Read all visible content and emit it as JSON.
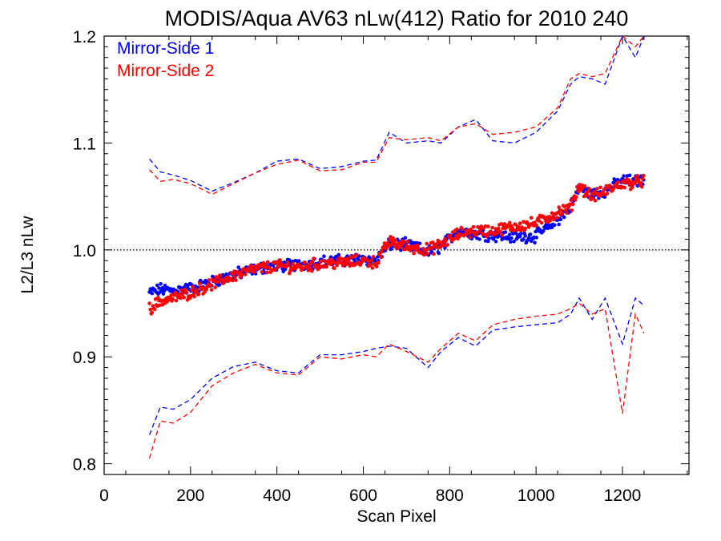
{
  "chart_data": {
    "type": "scatter",
    "title": "MODIS/Aqua AV63 nLw(412) Ratio for 2010 240",
    "xlabel": "Scan Pixel",
    "ylabel": "L2/L3 nLw",
    "xlim": [
      0,
      1354
    ],
    "ylim": [
      0.79,
      1.2
    ],
    "xticks": [
      0,
      200,
      400,
      600,
      800,
      1000,
      1200
    ],
    "xtick_labels": [
      "0",
      "200",
      "400",
      "600",
      "800",
      "1000",
      "1200"
    ],
    "yticks": [
      0.8,
      0.9,
      1.0,
      1.1,
      1.2
    ],
    "ytick_labels": [
      "0.8",
      "0.9",
      "1.0",
      "1.1",
      "1.2"
    ],
    "reference_line": 1.0,
    "legend_position": "top-left",
    "colors": {
      "ms1": "#0000ff",
      "ms2": "#ff0000"
    },
    "series": [
      {
        "name": "Mirror-Side 1",
        "color": "#0000ff",
        "x": [
          105,
          130,
          160,
          200,
          250,
          300,
          350,
          400,
          450,
          500,
          550,
          600,
          630,
          660,
          700,
          750,
          780,
          820,
          860,
          900,
          950,
          1000,
          1050,
          1080,
          1100,
          1130,
          1160,
          1200,
          1230,
          1250
        ],
        "mean": [
          0.96,
          0.963,
          0.962,
          0.964,
          0.97,
          0.977,
          0.982,
          0.985,
          0.986,
          0.989,
          0.99,
          0.992,
          0.99,
          1.005,
          1.005,
          0.998,
          1.003,
          1.018,
          1.015,
          1.014,
          1.012,
          1.013,
          1.028,
          1.04,
          1.058,
          1.052,
          1.055,
          1.065,
          1.064,
          1.066
        ],
        "upper": [
          1.085,
          1.073,
          1.07,
          1.065,
          1.055,
          1.063,
          1.072,
          1.083,
          1.085,
          1.076,
          1.078,
          1.083,
          1.084,
          1.11,
          1.1,
          1.102,
          1.1,
          1.115,
          1.122,
          1.102,
          1.1,
          1.11,
          1.13,
          1.155,
          1.162,
          1.16,
          1.155,
          1.205,
          1.18,
          1.2
        ],
        "lower": [
          0.827,
          0.853,
          0.851,
          0.86,
          0.88,
          0.891,
          0.895,
          0.887,
          0.885,
          0.902,
          0.902,
          0.905,
          0.908,
          0.91,
          0.908,
          0.89,
          0.905,
          0.918,
          0.91,
          0.925,
          0.928,
          0.93,
          0.932,
          0.94,
          0.955,
          0.935,
          0.955,
          0.912,
          0.955,
          0.948
        ]
      },
      {
        "name": "Mirror-Side 2",
        "color": "#ff0000",
        "x": [
          105,
          130,
          160,
          200,
          250,
          300,
          350,
          400,
          450,
          500,
          550,
          600,
          630,
          660,
          700,
          750,
          780,
          820,
          860,
          900,
          950,
          1000,
          1050,
          1080,
          1100,
          1130,
          1160,
          1200,
          1230,
          1250
        ],
        "mean": [
          0.945,
          0.952,
          0.955,
          0.96,
          0.968,
          0.976,
          0.982,
          0.985,
          0.984,
          0.987,
          0.988,
          0.99,
          0.988,
          1.008,
          1.003,
          1.0,
          1.005,
          1.015,
          1.018,
          1.018,
          1.022,
          1.025,
          1.035,
          1.04,
          1.06,
          1.05,
          1.055,
          1.062,
          1.063,
          1.065
        ],
        "upper": [
          1.075,
          1.064,
          1.066,
          1.062,
          1.052,
          1.062,
          1.072,
          1.08,
          1.084,
          1.074,
          1.075,
          1.082,
          1.082,
          1.105,
          1.103,
          1.105,
          1.102,
          1.115,
          1.118,
          1.108,
          1.11,
          1.115,
          1.133,
          1.16,
          1.165,
          1.162,
          1.165,
          1.215,
          1.19,
          1.21
        ],
        "lower": [
          0.805,
          0.84,
          0.838,
          0.848,
          0.873,
          0.885,
          0.893,
          0.885,
          0.883,
          0.9,
          0.898,
          0.902,
          0.9,
          0.912,
          0.905,
          0.895,
          0.908,
          0.922,
          0.915,
          0.93,
          0.935,
          0.938,
          0.94,
          0.945,
          0.95,
          0.94,
          0.945,
          0.847,
          0.94,
          0.922
        ]
      }
    ]
  }
}
